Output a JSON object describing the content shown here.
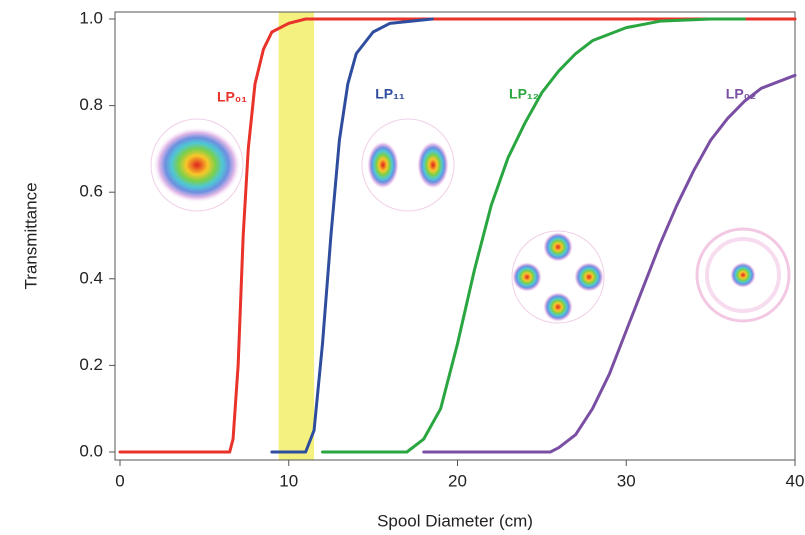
{
  "chart_data": {
    "type": "line",
    "xlabel": "Spool Diameter (cm)",
    "ylabel": "Transmittance",
    "xlim": [
      0,
      40
    ],
    "ylim": [
      0,
      1
    ],
    "xticks": [
      0,
      10,
      20,
      30,
      40
    ],
    "yticks": [
      {
        "value": 0,
        "label": "0.0"
      },
      0.2,
      0.4,
      0.6,
      0.8,
      {
        "value": 1,
        "label": "1.0"
      }
    ],
    "highlight": [
      9.4,
      11.5
    ],
    "highlight_color": "#f3ef6a",
    "series": [
      {
        "name": "LP₀₁",
        "color": "#e8322a",
        "x": [
          0,
          6.5,
          6.7,
          7.0,
          7.3,
          7.6,
          8.0,
          8.5,
          9.0,
          10,
          11,
          40
        ],
        "values": [
          0,
          0,
          0.03,
          0.2,
          0.5,
          0.7,
          0.85,
          0.93,
          0.97,
          0.99,
          1.0,
          1.0
        ]
      },
      {
        "name": "LP₁₁",
        "color": "#2e4d9e",
        "x": [
          9,
          11,
          11.5,
          12,
          12.5,
          13,
          13.5,
          14,
          15,
          16,
          18.5
        ],
        "values": [
          0,
          0,
          0.05,
          0.25,
          0.5,
          0.72,
          0.85,
          0.92,
          0.97,
          0.99,
          1.0
        ]
      },
      {
        "name": "LP₁₂",
        "color": "#2aa640",
        "x": [
          12,
          17,
          18,
          19,
          20,
          21,
          22,
          23,
          24,
          25,
          26,
          27,
          28,
          30,
          32,
          35,
          37
        ],
        "values": [
          0,
          0,
          0.03,
          0.1,
          0.25,
          0.42,
          0.57,
          0.68,
          0.76,
          0.83,
          0.88,
          0.92,
          0.95,
          0.98,
          0.995,
          1.0,
          1.0
        ]
      },
      {
        "name": "LP₀₂",
        "color": "#7a4fa3",
        "x": [
          18,
          25.5,
          26,
          27,
          28,
          29,
          30,
          31,
          32,
          33,
          34,
          35,
          36,
          37,
          38,
          40
        ],
        "values": [
          0,
          0,
          0.01,
          0.04,
          0.1,
          0.18,
          0.28,
          0.38,
          0.48,
          0.57,
          0.65,
          0.72,
          0.77,
          0.81,
          0.84,
          0.87
        ]
      }
    ]
  }
}
